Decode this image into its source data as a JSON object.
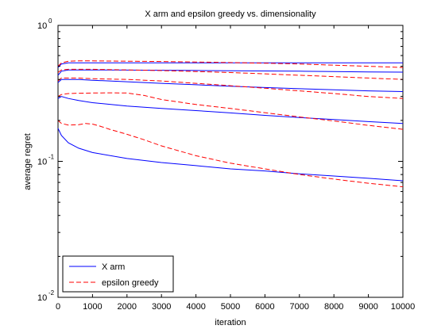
{
  "chart_data": {
    "type": "line",
    "title": "X arm and epsilon greedy vs. dimensionality",
    "xlabel": "iteration",
    "ylabel": "average regret",
    "xlim": [
      0,
      10000
    ],
    "ylim": [
      0.01,
      1
    ],
    "yscale": "log",
    "grid": false,
    "legend_position": "bottom-left",
    "x_ticks": [
      "0",
      "1000",
      "2000",
      "3000",
      "4000",
      "5000",
      "6000",
      "7000",
      "8000",
      "9000",
      "10000"
    ],
    "y_ticks": [
      {
        "base": "10",
        "exp": "-2",
        "value": 0.01
      },
      {
        "base": "10",
        "exp": "-1",
        "value": 0.1
      },
      {
        "base": "10",
        "exp": "0",
        "value": 1
      }
    ],
    "legend": [
      {
        "label": "X arm",
        "color": "#0000ff",
        "dash": "solid"
      },
      {
        "label": "epsilon greedy",
        "color": "#ff0000",
        "dash": "dashed"
      }
    ],
    "series": [
      {
        "group": "X arm",
        "color": "#0000ff",
        "dash": "solid",
        "x": [
          0,
          100,
          300,
          600,
          1000,
          2000,
          3000,
          4000,
          5000,
          6000,
          7000,
          8000,
          9000,
          10000
        ],
        "y": [
          0.175,
          0.155,
          0.137,
          0.125,
          0.116,
          0.105,
          0.098,
          0.093,
          0.088,
          0.085,
          0.081,
          0.078,
          0.075,
          0.072
        ]
      },
      {
        "group": "X arm",
        "color": "#0000ff",
        "dash": "solid",
        "x": [
          0,
          100,
          300,
          600,
          1000,
          2000,
          3000,
          4000,
          5000,
          6000,
          7000,
          8000,
          9000,
          10000
        ],
        "y": [
          0.29,
          0.3,
          0.29,
          0.28,
          0.27,
          0.255,
          0.245,
          0.236,
          0.227,
          0.218,
          0.21,
          0.203,
          0.196,
          0.19
        ]
      },
      {
        "group": "X arm",
        "color": "#0000ff",
        "dash": "solid",
        "x": [
          0,
          100,
          300,
          600,
          1000,
          2000,
          3000,
          4000,
          5000,
          6000,
          7000,
          8000,
          9000,
          10000
        ],
        "y": [
          0.38,
          0.4,
          0.4,
          0.4,
          0.395,
          0.385,
          0.375,
          0.366,
          0.357,
          0.349,
          0.342,
          0.336,
          0.33,
          0.326
        ]
      },
      {
        "group": "X arm",
        "color": "#0000ff",
        "dash": "solid",
        "x": [
          0,
          100,
          300,
          600,
          1000,
          2000,
          3000,
          4000,
          5000,
          6000,
          7000,
          8000,
          9000,
          10000
        ],
        "y": [
          0.43,
          0.46,
          0.47,
          0.47,
          0.47,
          0.469,
          0.468,
          0.466,
          0.464,
          0.462,
          0.46,
          0.457,
          0.455,
          0.453
        ]
      },
      {
        "group": "X arm",
        "color": "#0000ff",
        "dash": "solid",
        "x": [
          0,
          100,
          300,
          600,
          1000,
          2000,
          3000,
          4000,
          5000,
          6000,
          7000,
          8000,
          9000,
          10000
        ],
        "y": [
          0.49,
          0.52,
          0.53,
          0.53,
          0.53,
          0.53,
          0.53,
          0.53,
          0.53,
          0.53,
          0.53,
          0.53,
          0.53,
          0.53
        ]
      },
      {
        "group": "epsilon greedy",
        "color": "#ff0000",
        "dash": "dashed",
        "x": [
          0,
          100,
          300,
          600,
          800,
          1000,
          1200,
          1500,
          2000,
          2500,
          3000,
          4000,
          5000,
          6000,
          7000,
          8000,
          9000,
          10000
        ],
        "y": [
          0.2,
          0.19,
          0.185,
          0.186,
          0.19,
          0.188,
          0.182,
          0.172,
          0.158,
          0.144,
          0.13,
          0.11,
          0.097,
          0.088,
          0.08,
          0.074,
          0.069,
          0.065
        ]
      },
      {
        "group": "epsilon greedy",
        "color": "#ff0000",
        "dash": "dashed",
        "x": [
          0,
          100,
          300,
          600,
          1000,
          1500,
          2000,
          2500,
          3000,
          4000,
          5000,
          6000,
          7000,
          8000,
          9000,
          10000
        ],
        "y": [
          0.3,
          0.31,
          0.315,
          0.317,
          0.318,
          0.319,
          0.318,
          0.305,
          0.285,
          0.262,
          0.245,
          0.228,
          0.212,
          0.198,
          0.184,
          0.172
        ]
      },
      {
        "group": "epsilon greedy",
        "color": "#ff0000",
        "dash": "dashed",
        "x": [
          0,
          100,
          300,
          600,
          1000,
          2000,
          3000,
          4000,
          5000,
          6000,
          7000,
          8000,
          9000,
          10000
        ],
        "y": [
          0.39,
          0.41,
          0.41,
          0.41,
          0.405,
          0.4,
          0.39,
          0.375,
          0.36,
          0.345,
          0.33,
          0.315,
          0.3,
          0.29
        ]
      },
      {
        "group": "epsilon greedy",
        "color": "#ff0000",
        "dash": "dashed",
        "x": [
          0,
          100,
          300,
          600,
          1000,
          2000,
          3000,
          4000,
          5000,
          6000,
          7000,
          8000,
          9000,
          10000
        ],
        "y": [
          0.45,
          0.47,
          0.475,
          0.475,
          0.475,
          0.47,
          0.465,
          0.458,
          0.45,
          0.44,
          0.43,
          0.42,
          0.41,
          0.4
        ]
      },
      {
        "group": "epsilon greedy",
        "color": "#ff0000",
        "dash": "dashed",
        "x": [
          0,
          100,
          300,
          600,
          1000,
          2000,
          3000,
          4000,
          5000,
          6000,
          7000,
          8000,
          9000,
          10000
        ],
        "y": [
          0.5,
          0.53,
          0.545,
          0.548,
          0.548,
          0.545,
          0.542,
          0.538,
          0.533,
          0.527,
          0.52,
          0.51,
          0.5,
          0.49
        ]
      }
    ]
  }
}
